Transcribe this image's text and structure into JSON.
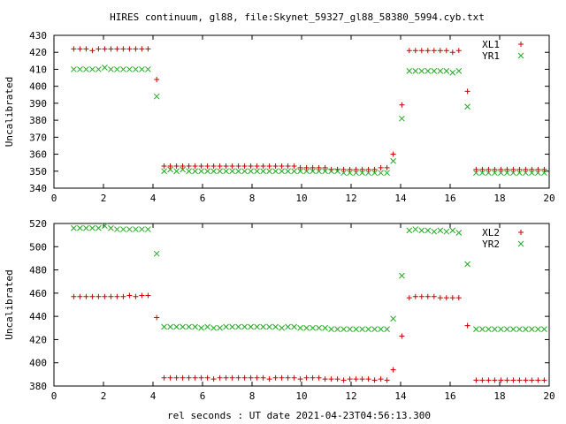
{
  "title": "HIRES continuum, gl88, file:Skynet_59327_gl88_58380_5994.cyb.txt",
  "xlabel": "rel seconds : UT date 2021-04-23T04:56:13.300",
  "colors": {
    "xl": "#cc0000",
    "yr": "#22aa22"
  },
  "chart_data": [
    {
      "type": "scatter",
      "ylabel": "Uncalibrated",
      "xlim": [
        0,
        20
      ],
      "ylim": [
        340,
        430
      ],
      "xticks": [
        0,
        2,
        4,
        6,
        8,
        10,
        12,
        14,
        16,
        18,
        20
      ],
      "yticks": [
        340,
        350,
        360,
        370,
        380,
        390,
        400,
        410,
        420,
        430
      ],
      "legend": "top-right",
      "series": [
        {
          "name": "XL1",
          "marker": "plus",
          "color": "#cc0000",
          "x": [
            0.8,
            1.05,
            1.3,
            1.55,
            1.8,
            2.05,
            2.3,
            2.55,
            2.8,
            3.05,
            3.3,
            3.55,
            3.8,
            4.15,
            4.45,
            4.7,
            4.95,
            5.2,
            5.45,
            5.7,
            5.95,
            6.2,
            6.45,
            6.7,
            6.95,
            7.2,
            7.45,
            7.7,
            7.95,
            8.2,
            8.45,
            8.7,
            8.95,
            9.2,
            9.45,
            9.7,
            9.95,
            10.2,
            10.45,
            10.7,
            10.95,
            11.2,
            11.45,
            11.7,
            11.95,
            12.2,
            12.45,
            12.7,
            12.95,
            13.2,
            13.45,
            13.7,
            14.05,
            14.35,
            14.6,
            14.85,
            15.1,
            15.35,
            15.6,
            15.85,
            16.1,
            16.35,
            16.7,
            17.05,
            17.3,
            17.55,
            17.8,
            18.05,
            18.3,
            18.55,
            18.8,
            19.05,
            19.3,
            19.55,
            19.8
          ],
          "y": [
            422,
            422,
            422,
            421,
            422,
            422,
            422,
            422,
            422,
            422,
            422,
            422,
            422,
            404,
            353,
            353,
            353,
            353,
            353,
            353,
            353,
            353,
            353,
            353,
            353,
            353,
            353,
            353,
            353,
            353,
            353,
            353,
            353,
            353,
            353,
            353,
            352,
            352,
            352,
            352,
            352,
            351,
            351,
            351,
            351,
            351,
            351,
            351,
            351,
            352,
            352,
            360,
            389,
            421,
            421,
            421,
            421,
            421,
            421,
            421,
            420,
            421,
            397,
            351,
            351,
            351,
            351,
            351,
            351,
            351,
            351,
            351,
            351,
            351,
            351
          ]
        },
        {
          "name": "YR1",
          "marker": "cross",
          "color": "#22aa22",
          "x": [
            0.8,
            1.05,
            1.3,
            1.55,
            1.8,
            2.05,
            2.3,
            2.55,
            2.8,
            3.05,
            3.3,
            3.55,
            3.8,
            4.15,
            4.45,
            4.7,
            4.95,
            5.2,
            5.45,
            5.7,
            5.95,
            6.2,
            6.45,
            6.7,
            6.95,
            7.2,
            7.45,
            7.7,
            7.95,
            8.2,
            8.45,
            8.7,
            8.95,
            9.2,
            9.45,
            9.7,
            9.95,
            10.2,
            10.45,
            10.7,
            10.95,
            11.2,
            11.45,
            11.7,
            11.95,
            12.2,
            12.45,
            12.7,
            12.95,
            13.2,
            13.45,
            13.7,
            14.05,
            14.35,
            14.6,
            14.85,
            15.1,
            15.35,
            15.6,
            15.85,
            16.1,
            16.35,
            16.7,
            17.05,
            17.3,
            17.55,
            17.8,
            18.05,
            18.3,
            18.55,
            18.8,
            19.05,
            19.3,
            19.55,
            19.8
          ],
          "y": [
            410,
            410,
            410,
            410,
            410,
            411,
            410,
            410,
            410,
            410,
            410,
            410,
            410,
            394,
            350,
            351,
            350,
            351,
            350,
            350,
            350,
            350,
            350,
            350,
            350,
            350,
            350,
            350,
            350,
            350,
            350,
            350,
            350,
            350,
            350,
            350,
            350,
            350,
            350,
            350,
            350,
            350,
            350,
            349,
            349,
            349,
            349,
            349,
            349,
            349,
            349,
            356,
            381,
            409,
            409,
            409,
            409,
            409,
            409,
            409,
            408,
            409,
            388,
            349,
            349,
            349,
            349,
            349,
            349,
            349,
            349,
            349,
            349,
            349,
            349
          ]
        }
      ]
    },
    {
      "type": "scatter",
      "ylabel": "Uncalibrated",
      "xlim": [
        0,
        20
      ],
      "ylim": [
        380,
        520
      ],
      "xticks": [
        0,
        2,
        4,
        6,
        8,
        10,
        12,
        14,
        16,
        18,
        20
      ],
      "yticks": [
        380,
        400,
        420,
        440,
        460,
        480,
        500,
        520
      ],
      "legend": "top-right",
      "series": [
        {
          "name": "XL2",
          "marker": "plus",
          "color": "#cc0000",
          "x": [
            0.8,
            1.05,
            1.3,
            1.55,
            1.8,
            2.05,
            2.3,
            2.55,
            2.8,
            3.05,
            3.3,
            3.55,
            3.8,
            4.15,
            4.45,
            4.7,
            4.95,
            5.2,
            5.45,
            5.7,
            5.95,
            6.2,
            6.45,
            6.7,
            6.95,
            7.2,
            7.45,
            7.7,
            7.95,
            8.2,
            8.45,
            8.7,
            8.95,
            9.2,
            9.45,
            9.7,
            9.95,
            10.2,
            10.45,
            10.7,
            10.95,
            11.2,
            11.45,
            11.7,
            11.95,
            12.2,
            12.45,
            12.7,
            12.95,
            13.2,
            13.45,
            13.7,
            14.05,
            14.35,
            14.6,
            14.85,
            15.1,
            15.35,
            15.6,
            15.85,
            16.1,
            16.35,
            16.7,
            17.05,
            17.3,
            17.55,
            17.8,
            18.05,
            18.3,
            18.55,
            18.8,
            19.05,
            19.3,
            19.55,
            19.8
          ],
          "y": [
            457,
            457,
            457,
            457,
            457,
            457,
            457,
            457,
            457,
            458,
            457,
            458,
            458,
            439,
            387,
            387,
            387,
            387,
            387,
            387,
            387,
            387,
            386,
            387,
            387,
            387,
            387,
            387,
            387,
            387,
            387,
            386,
            387,
            387,
            387,
            387,
            386,
            387,
            387,
            387,
            386,
            386,
            386,
            385,
            386,
            386,
            386,
            386,
            385,
            386,
            385,
            394,
            423,
            456,
            457,
            457,
            457,
            457,
            456,
            456,
            456,
            456,
            432,
            385,
            385,
            385,
            385,
            385,
            385,
            385,
            385,
            385,
            385,
            385,
            385
          ]
        },
        {
          "name": "YR2",
          "marker": "cross",
          "color": "#22aa22",
          "x": [
            0.8,
            1.05,
            1.3,
            1.55,
            1.8,
            2.05,
            2.3,
            2.55,
            2.8,
            3.05,
            3.3,
            3.55,
            3.8,
            4.15,
            4.45,
            4.7,
            4.95,
            5.2,
            5.45,
            5.7,
            5.95,
            6.2,
            6.45,
            6.7,
            6.95,
            7.2,
            7.45,
            7.7,
            7.95,
            8.2,
            8.45,
            8.7,
            8.95,
            9.2,
            9.45,
            9.7,
            9.95,
            10.2,
            10.45,
            10.7,
            10.95,
            11.2,
            11.45,
            11.7,
            11.95,
            12.2,
            12.45,
            12.7,
            12.95,
            13.2,
            13.45,
            13.7,
            14.05,
            14.35,
            14.6,
            14.85,
            15.1,
            15.35,
            15.6,
            15.85,
            16.1,
            16.35,
            16.7,
            17.05,
            17.3,
            17.55,
            17.8,
            18.05,
            18.3,
            18.55,
            18.8,
            19.05,
            19.3,
            19.55,
            19.8
          ],
          "y": [
            516,
            516,
            516,
            516,
            516,
            518,
            516,
            515,
            515,
            515,
            515,
            515,
            515,
            494,
            431,
            431,
            431,
            431,
            431,
            431,
            430,
            431,
            430,
            430,
            431,
            431,
            431,
            431,
            431,
            431,
            431,
            431,
            431,
            430,
            431,
            431,
            430,
            430,
            430,
            430,
            430,
            429,
            429,
            429,
            429,
            429,
            429,
            429,
            429,
            429,
            429,
            438,
            475,
            514,
            515,
            514,
            514,
            513,
            514,
            513,
            514,
            512,
            485,
            429,
            429,
            429,
            429,
            429,
            429,
            429,
            429,
            429,
            429,
            429,
            429
          ]
        }
      ]
    }
  ]
}
